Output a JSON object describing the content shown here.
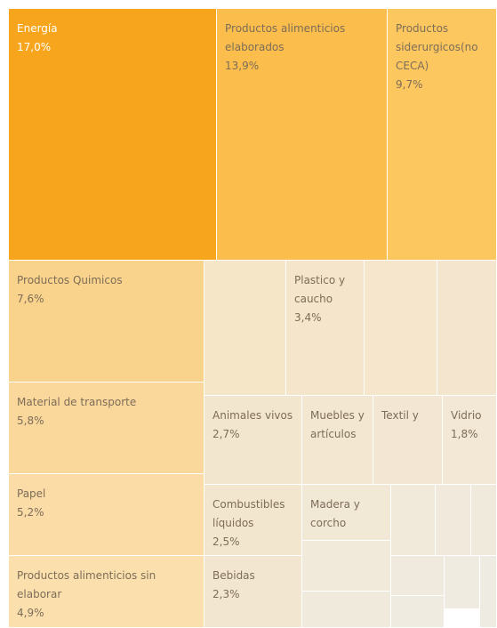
{
  "chart_data": {
    "type": "treemap",
    "categories": [
      "Energía",
      "Productos alimenticios elaborados",
      "Productos siderurgicos(no CECA)",
      "Productos Quimicos",
      "Material de transporte",
      "Papel",
      "Productos alimenticios sin elaborar",
      null,
      "Plastico y caucho",
      null,
      null,
      "Animales vivos",
      "Muebles y artículos",
      "Textil y",
      "Vidrio",
      "Combustibles líquidos",
      "Bebidas",
      "Madera y corcho",
      null,
      null,
      null,
      null,
      null,
      null,
      null,
      null,
      null
    ],
    "values": [
      17.0,
      13.9,
      9.7,
      7.6,
      5.8,
      5.2,
      4.9,
      3.5,
      3.4,
      3.1,
      2.6,
      2.7,
      2.0,
      1.9,
      1.8,
      2.5,
      2.3,
      1.6,
      1.0,
      0.8,
      0.6,
      1.1,
      0.8,
      0.7,
      0.5,
      0.5,
      0.3
    ],
    "value_labels": [
      "17,0%",
      "13,9%",
      "9,7%",
      "7,6%",
      "5,8%",
      "5,2%",
      "4,9%",
      null,
      "3,4%",
      null,
      null,
      "2,7%",
      null,
      null,
      "1,8%",
      "2,5%",
      "2,3%",
      null,
      null,
      null,
      null,
      null,
      null,
      null,
      null,
      null,
      null
    ],
    "colors": [
      "#f7a51c",
      "#fbbd4b",
      "#fcc75f",
      "#f9d38b",
      "#fad89c",
      "#fbdca6",
      "#fbe0ae",
      "#f6e6c8",
      "#f5e5ca",
      "#f5e6cc",
      "#f4e6ce",
      "#f3e6cf",
      "#f3e7d2",
      "#f3e7d3",
      "#f2e8d5",
      "#f3e6cf",
      "#f3e6d0",
      "#f2e8d6",
      "#f1e9da",
      "#f1e9db",
      "#f0eadd",
      "#f1e9da",
      "#f0eadd",
      "#f0eade",
      "#efebe0",
      "#efebe0",
      "#eeebe2"
    ]
  }
}
